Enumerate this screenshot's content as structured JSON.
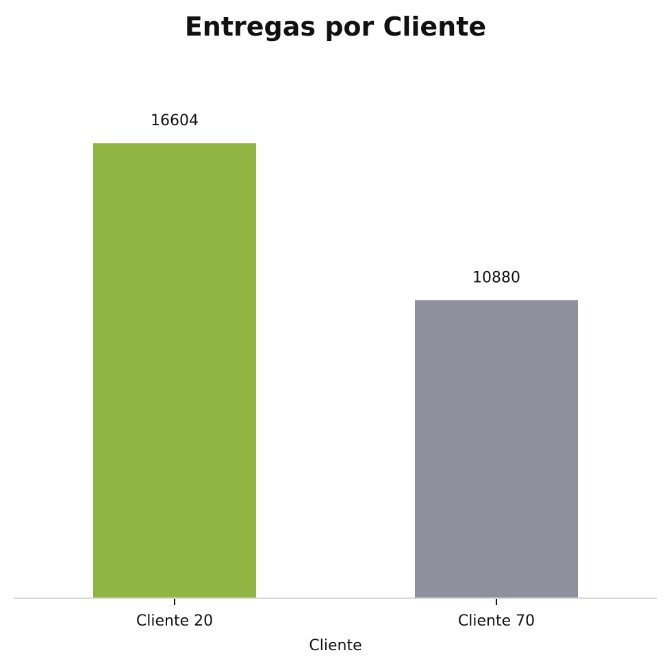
{
  "chart_data": {
    "type": "bar",
    "title": "Entregas por Cliente",
    "xlabel": "Cliente",
    "ylabel": "",
    "categories": [
      "Cliente 20",
      "Cliente 70"
    ],
    "values": [
      16604,
      10880
    ],
    "data_labels": [
      "16604",
      "10880"
    ],
    "colors": [
      "#8fb441",
      "#908f9e"
    ],
    "ylim": [
      0,
      17434
    ],
    "grid": false,
    "legend": "none"
  }
}
